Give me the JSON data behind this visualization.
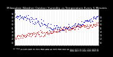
{
  "title": "Milwaukee Weather Outdoor Humidity vs Temperature Every 5 Minutes",
  "title_fontsize": 3.0,
  "title_color": "#000000",
  "bg_color": "#000000",
  "plot_bg_color": "#ffffff",
  "grid_color": "#888888",
  "blue_color": "#0000cc",
  "red_color": "#cc0000",
  "marker_size": 0.8,
  "tick_fontsize": 2.0,
  "n_points": 150,
  "right_yticks": [
    10,
    20,
    30,
    40,
    50,
    60,
    70,
    80
  ],
  "left_yticks": [
    10,
    20,
    30,
    40,
    50,
    60,
    70,
    80,
    90
  ]
}
